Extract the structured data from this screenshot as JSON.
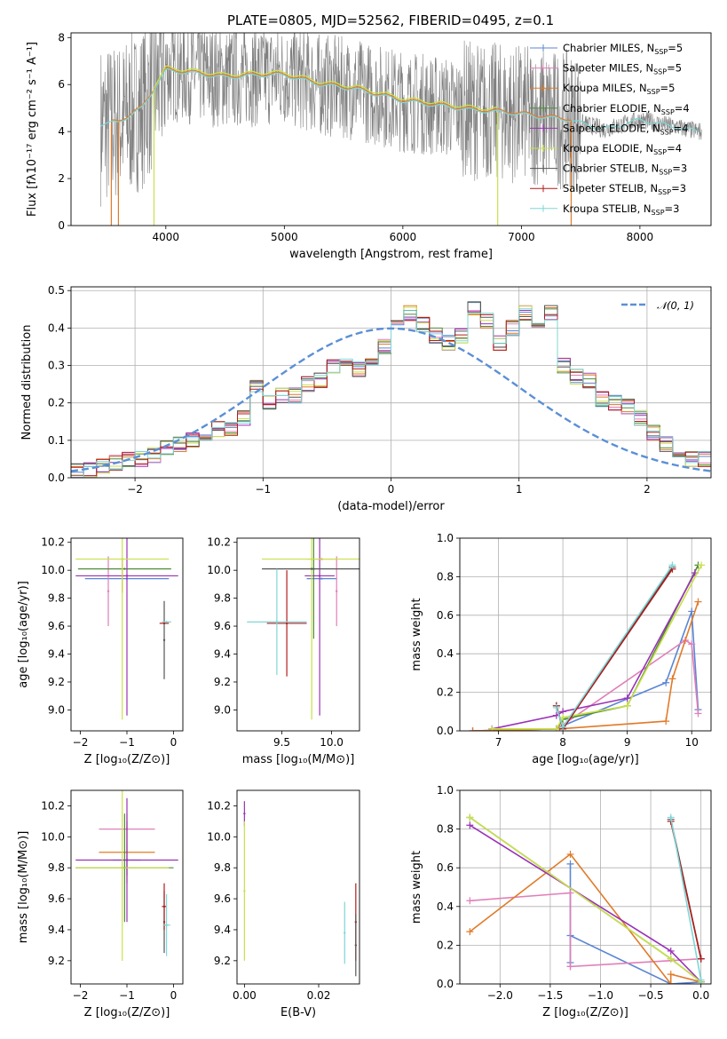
{
  "figure_title": "PLATE=0805, MJD=52562, FIBERID=0495, z=0.1",
  "colors": {
    "Chabrier MILES": "#5b86d4",
    "Salpeter MILES": "#e07fb8",
    "Kroupa MILES": "#e07b2a",
    "Chabrier ELODIE": "#4f8b3a",
    "Salpeter ELODIE": "#9a32b6",
    "Kroupa ELODIE": "#c9e04a",
    "Chabrier STELIB": "#555555",
    "Salpeter STELIB": "#b01c1c",
    "Kroupa STELIB": "#7fd6d6",
    "normal": "#5b8fd6",
    "data": "#808080",
    "grid": "#b0b0b0"
  },
  "chart_data": [
    {
      "id": "spectrum",
      "type": "line",
      "title": "PLATE=0805, MJD=52562, FIBERID=0495, z=0.1",
      "xlabel": "wavelength [Angstrom, rest frame]",
      "ylabel": "Flux [fλ10⁻¹⁷ erg cm⁻² s⁻¹ A⁻¹]",
      "xlim": [
        3200,
        8600
      ],
      "ylim": [
        0,
        8.2
      ],
      "xticks": [
        4000,
        5000,
        6000,
        7000,
        8000
      ],
      "yticks": [
        0,
        2,
        4,
        6,
        8
      ],
      "legend": [
        "Chabrier MILES, N_SSP=5",
        "Salpeter MILES, N_SSP=5",
        "Kroupa MILES, N_SSP=5",
        "Chabrier ELODIE, N_SSP=4",
        "Salpeter ELODIE, N_SSP=4",
        "Kroupa ELODIE, N_SSP=4",
        "Chabrier STELIB, N_SSP=3",
        "Salpeter STELIB, N_SSP=3",
        "Kroupa STELIB, N_SSP=3"
      ],
      "model_continuum": {
        "x": [
          3450,
          3600,
          3800,
          4000,
          4200,
          4500,
          4800,
          5000,
          5300,
          5600,
          6000,
          6300,
          6600,
          6900,
          7200,
          7400,
          7700,
          8000,
          8300,
          8500
        ],
        "y": [
          4.3,
          4.4,
          5.0,
          6.6,
          6.5,
          6.3,
          6.4,
          6.4,
          6.0,
          5.8,
          5.3,
          5.1,
          4.9,
          4.8,
          4.6,
          4.5,
          4.1,
          4.5,
          4.2,
          4.0
        ]
      },
      "models": [
        {
          "name": "MILES",
          "x_range": [
            3540,
            7420
          ]
        },
        {
          "name": "ELODIE",
          "x_range": [
            3900,
            6800
          ]
        },
        {
          "name": "STELIB",
          "x_range": [
            3450,
            8500
          ]
        }
      ]
    },
    {
      "id": "residuals",
      "type": "line",
      "xlabel": "(data-model)/error",
      "ylabel": "Normed distribution",
      "xlim": [
        -2.5,
        2.5
      ],
      "ylim": [
        0,
        0.51
      ],
      "xticks": [
        -2,
        -1,
        0,
        1,
        2
      ],
      "xtick_labels": [
        "−2",
        "−1",
        "0",
        "1",
        "2"
      ],
      "yticks": [
        0,
        0.1,
        0.2,
        0.3,
        0.4,
        0.5
      ],
      "ytick_labels": [
        "0.0",
        "0.1",
        "0.2",
        "0.3",
        "0.4",
        "0.5"
      ],
      "grid": true,
      "legend": "𝒩(0, 1)",
      "legend_position": "top-right",
      "bin_width": 0.1,
      "bin_edges_start": -2.5,
      "histogram_values": [
        0.02,
        0.02,
        0.03,
        0.04,
        0.05,
        0.05,
        0.06,
        0.08,
        0.09,
        0.1,
        0.12,
        0.13,
        0.13,
        0.16,
        0.24,
        0.2,
        0.22,
        0.22,
        0.25,
        0.26,
        0.3,
        0.32,
        0.29,
        0.31,
        0.35,
        0.4,
        0.44,
        0.41,
        0.38,
        0.36,
        0.38,
        0.45,
        0.42,
        0.36,
        0.4,
        0.44,
        0.4,
        0.44,
        0.3,
        0.27,
        0.26,
        0.21,
        0.2,
        0.19,
        0.16,
        0.12,
        0.09,
        0.07,
        0.05,
        0.05,
        0.04
      ]
    },
    {
      "id": "age-vs-Z",
      "type": "scatter",
      "xlabel": "Z [log₁₀(Z/Z⊙)]",
      "ylabel": "age  [log₁₀(age/yr)]",
      "xlim": [
        -2.2,
        0.2
      ],
      "ylim": [
        8.85,
        10.23
      ],
      "xticks": [
        -2,
        -1,
        0
      ],
      "xtick_labels": [
        "−2",
        "−1",
        "0"
      ],
      "yticks": [
        9.0,
        9.2,
        9.4,
        9.6,
        9.8,
        10.0,
        10.2
      ],
      "ytick_labels": [
        "9.0",
        "9.2",
        "9.4",
        "9.6",
        "9.8",
        "10.0",
        "10.2"
      ],
      "points": [
        {
          "model": "Chabrier MILES",
          "x": -1.0,
          "xerr": 0.9,
          "y": 9.94,
          "yerr": 0.0
        },
        {
          "model": "Salpeter MILES",
          "x": -1.4,
          "xerr": 0.0,
          "y": 9.85,
          "yerr": 0.25
        },
        {
          "model": "Kroupa MILES",
          "x": -1.1,
          "xerr": 0.0,
          "y": 9.96,
          "yerr": 0.12
        },
        {
          "model": "Chabrier ELODIE",
          "x": -1.05,
          "xerr": 1.0,
          "y": 10.01,
          "yerr": 0.0
        },
        {
          "model": "Salpeter ELODIE",
          "x": -1.0,
          "xerr": 1.1,
          "y": 9.96,
          "yerr": 1.0
        },
        {
          "model": "Kroupa ELODIE",
          "x": -1.1,
          "xerr": 1.0,
          "y": 10.08,
          "yerr": 1.15
        },
        {
          "model": "Chabrier STELIB",
          "x": -0.2,
          "xerr": 0.0,
          "y": 9.5,
          "yerr": 0.28
        },
        {
          "model": "Salpeter STELIB",
          "x": -0.2,
          "xerr": 0.1,
          "y": 9.62,
          "yerr": 0.0
        },
        {
          "model": "Kroupa STELIB",
          "x": -0.15,
          "xerr": 0.1,
          "y": 9.63,
          "yerr": 0.0
        }
      ]
    },
    {
      "id": "age-vs-mass",
      "type": "scatter",
      "xlabel": "mass [log₁₀(M/M⊙)]",
      "xlim": [
        9.05,
        10.28
      ],
      "ylim": [
        8.85,
        10.23
      ],
      "xticks": [
        9.5,
        10.0
      ],
      "xtick_labels": [
        "9.5",
        "10.0"
      ],
      "yticks": [
        9.0,
        9.2,
        9.4,
        9.6,
        9.8,
        10.0,
        10.2
      ],
      "ytick_labels": [
        "9.0",
        "9.2",
        "9.4",
        "9.6",
        "9.8",
        "10.0",
        "10.2"
      ],
      "points": [
        {
          "model": "Chabrier MILES",
          "x": 9.9,
          "xerr": 0.15,
          "y": 9.94,
          "yerr": 0.0
        },
        {
          "model": "Salpeter MILES",
          "x": 10.05,
          "xerr": 0.0,
          "y": 9.85,
          "yerr": 0.25
        },
        {
          "model": "Kroupa MILES",
          "x": 9.9,
          "xerr": 0.15,
          "y": 10.08,
          "yerr": 0.0
        },
        {
          "model": "Chabrier ELODIE",
          "x": 9.82,
          "xerr": 0.0,
          "y": 10.01,
          "yerr": 0.5
        },
        {
          "model": "Salpeter ELODIE",
          "x": 9.88,
          "xerr": 0.15,
          "y": 9.96,
          "yerr": 1.0
        },
        {
          "model": "Kroupa ELODIE",
          "x": 9.8,
          "xerr": 0.5,
          "y": 10.08,
          "yerr": 1.15
        },
        {
          "model": "Chabrier STELIB",
          "x": 9.8,
          "xerr": 0.5,
          "y": 10.01,
          "yerr": 0.0
        },
        {
          "model": "Salpeter STELIB",
          "x": 9.55,
          "xerr": 0.2,
          "y": 9.62,
          "yerr": 0.38
        },
        {
          "model": "Kroupa STELIB",
          "x": 9.45,
          "xerr": 0.3,
          "y": 9.63,
          "yerr": 0.38
        }
      ]
    },
    {
      "id": "massweight-vs-age",
      "type": "line",
      "xlabel": "age  [log₁₀(age/yr)]",
      "ylabel": "mass weight",
      "xlim": [
        6.4,
        10.3
      ],
      "ylim": [
        0,
        1.0
      ],
      "xticks": [
        7,
        8,
        9,
        10
      ],
      "xtick_labels": [
        "7",
        "8",
        "9",
        "10"
      ],
      "yticks": [
        0,
        0.2,
        0.4,
        0.6,
        0.8,
        1.0
      ],
      "ytick_labels": [
        "0.0",
        "0.2",
        "0.4",
        "0.6",
        "0.8",
        "1.0"
      ],
      "grid": true,
      "series": [
        {
          "model": "Chabrier MILES",
          "x": [
            6.6,
            7.9,
            7.95,
            9.6,
            10.0,
            10.1
          ],
          "y": [
            0.0,
            0.01,
            0.02,
            0.25,
            0.62,
            0.11
          ]
        },
        {
          "model": "Salpeter MILES",
          "x": [
            6.6,
            7.9,
            7.95,
            9.9,
            10.0,
            10.1
          ],
          "y": [
            0.0,
            0.01,
            0.02,
            0.47,
            0.45,
            0.09
          ]
        },
        {
          "model": "Kroupa MILES",
          "x": [
            6.6,
            7.9,
            7.95,
            9.6,
            9.7,
            10.1
          ],
          "y": [
            0.0,
            0.01,
            0.01,
            0.05,
            0.27,
            0.67
          ]
        },
        {
          "model": "Chabrier ELODIE",
          "x": [
            6.9,
            7.9,
            8.0,
            9.0,
            10.1
          ],
          "y": [
            0.01,
            0.01,
            0.06,
            0.13,
            0.86
          ]
        },
        {
          "model": "Salpeter ELODIE",
          "x": [
            6.9,
            7.9,
            8.0,
            9.0,
            10.05
          ],
          "y": [
            0.01,
            0.08,
            0.1,
            0.17,
            0.82
          ]
        },
        {
          "model": "Kroupa ELODIE",
          "x": [
            6.9,
            7.9,
            8.0,
            9.0,
            10.15
          ],
          "y": [
            0.01,
            0.01,
            0.07,
            0.13,
            0.86
          ]
        },
        {
          "model": "Chabrier STELIB",
          "x": [
            7.9,
            8.0,
            9.7
          ],
          "y": [
            0.13,
            0.01,
            0.85
          ]
        },
        {
          "model": "Salpeter STELIB",
          "x": [
            7.9,
            8.0,
            9.7
          ],
          "y": [
            0.13,
            0.01,
            0.84
          ]
        },
        {
          "model": "Kroupa STELIB",
          "x": [
            7.9,
            8.0,
            9.7
          ],
          "y": [
            0.12,
            0.02,
            0.86
          ]
        }
      ]
    },
    {
      "id": "mass-vs-Z",
      "type": "scatter",
      "xlabel": "Z [log₁₀(Z/Z⊙)]",
      "ylabel": "mass [log₁₀(M/M⊙)]",
      "xlim": [
        -2.2,
        0.2
      ],
      "ylim": [
        9.05,
        10.3
      ],
      "xticks": [
        -2,
        -1,
        0
      ],
      "xtick_labels": [
        "−2",
        "−1",
        "0"
      ],
      "yticks": [
        9.2,
        9.4,
        9.6,
        9.8,
        10.0,
        10.2
      ],
      "ytick_labels": [
        "9.2",
        "9.4",
        "9.6",
        "9.8",
        "10.0",
        "10.2"
      ],
      "points": [
        {
          "model": "Chabrier MILES",
          "x": -1.0,
          "xerr": 0.3,
          "y": 9.85,
          "yerr": 0.1
        },
        {
          "model": "Salpeter MILES",
          "x": -1.0,
          "xerr": 0.6,
          "y": 10.05,
          "yerr": 0.1
        },
        {
          "model": "Kroupa MILES",
          "x": -1.0,
          "xerr": 0.6,
          "y": 9.9,
          "yerr": 0.2
        },
        {
          "model": "Chabrier ELODIE",
          "x": -1.05,
          "xerr": 1.05,
          "y": 9.8,
          "yerr": 0.35
        },
        {
          "model": "Salpeter ELODIE",
          "x": -1.0,
          "xerr": 1.1,
          "y": 9.85,
          "yerr": 0.4
        },
        {
          "model": "Kroupa ELODIE",
          "x": -1.1,
          "xerr": 1.0,
          "y": 9.8,
          "yerr": 0.6
        },
        {
          "model": "Chabrier STELIB",
          "x": -0.2,
          "xerr": 0.0,
          "y": 9.45,
          "yerr": 0.2
        },
        {
          "model": "Salpeter STELIB",
          "x": -0.2,
          "xerr": 0.05,
          "y": 9.55,
          "yerr": 0.15
        },
        {
          "model": "Kroupa STELIB",
          "x": -0.15,
          "xerr": 0.08,
          "y": 9.43,
          "yerr": 0.2
        }
      ]
    },
    {
      "id": "mass-vs-EBV",
      "type": "scatter",
      "xlabel": "E(B-V)",
      "xlim": [
        -0.002,
        0.031
      ],
      "ylim": [
        9.05,
        10.3
      ],
      "xticks": [
        0.0,
        0.02
      ],
      "xtick_labels": [
        "0.00",
        "0.02"
      ],
      "yticks": [
        9.2,
        9.4,
        9.6,
        9.8,
        10.0,
        10.2
      ],
      "ytick_labels": [
        "9.2",
        "9.4",
        "9.6",
        "9.8",
        "10.0",
        "10.2"
      ],
      "points": [
        {
          "model": "Salpeter ELODIE",
          "x": 0.0,
          "xerr": 0.0,
          "y": 10.15,
          "yerr": 0.08
        },
        {
          "model": "Kroupa ELODIE",
          "x": 0.0,
          "xerr": 0.0,
          "y": 9.65,
          "yerr": 0.45
        },
        {
          "model": "Kroupa STELIB",
          "x": 0.027,
          "xerr": 0.0,
          "y": 9.38,
          "yerr": 0.2
        },
        {
          "model": "Salpeter STELIB",
          "x": 0.03,
          "xerr": 0.0,
          "y": 9.45,
          "yerr": 0.25
        },
        {
          "model": "Chabrier STELIB",
          "x": 0.03,
          "xerr": 0.0,
          "y": 9.3,
          "yerr": 0.2
        }
      ]
    },
    {
      "id": "massweight-vs-Z",
      "type": "line",
      "xlabel": "Z [log₁₀(Z/Z⊙)]",
      "ylabel": "mass weight",
      "xlim": [
        -2.4,
        0.1
      ],
      "ylim": [
        0,
        1.0
      ],
      "xticks": [
        -2.0,
        -1.5,
        -1.0,
        -0.5,
        0.0
      ],
      "xtick_labels": [
        "−2.0",
        "−1.5",
        "−1.0",
        "−0.5",
        "0.0"
      ],
      "yticks": [
        0,
        0.2,
        0.4,
        0.6,
        0.8,
        1.0
      ],
      "ytick_labels": [
        "0.0",
        "0.2",
        "0.4",
        "0.6",
        "0.8",
        "1.0"
      ],
      "grid": true,
      "series": [
        {
          "model": "Chabrier MILES",
          "x": [
            -1.3,
            -1.3,
            -1.3,
            -0.3,
            0.0
          ],
          "y": [
            0.62,
            0.11,
            0.25,
            0.0,
            0.01
          ]
        },
        {
          "model": "Salpeter MILES",
          "x": [
            -2.3,
            -1.3,
            -1.3,
            -1.3,
            0.0
          ],
          "y": [
            0.43,
            0.47,
            0.09,
            0.09,
            0.13
          ]
        },
        {
          "model": "Kroupa MILES",
          "x": [
            -2.3,
            -1.3,
            -0.3,
            -0.3,
            0.0
          ],
          "y": [
            0.27,
            0.67,
            0.0,
            0.05,
            0.01
          ]
        },
        {
          "model": "Chabrier ELODIE",
          "x": [
            -2.3,
            -0.3,
            0.0
          ],
          "y": [
            0.86,
            0.13,
            0.01
          ]
        },
        {
          "model": "Salpeter ELODIE",
          "x": [
            -2.3,
            -0.3,
            0.0
          ],
          "y": [
            0.82,
            0.17,
            0.01
          ]
        },
        {
          "model": "Kroupa ELODIE",
          "x": [
            -2.3,
            -0.3,
            0.0
          ],
          "y": [
            0.86,
            0.13,
            0.01
          ]
        },
        {
          "model": "Chabrier STELIB",
          "x": [
            -0.3,
            0.0
          ],
          "y": [
            0.85,
            0.13
          ]
        },
        {
          "model": "Salpeter STELIB",
          "x": [
            -0.3,
            0.0
          ],
          "y": [
            0.84,
            0.13
          ]
        },
        {
          "model": "Kroupa STELIB",
          "x": [
            -0.3,
            0.0
          ],
          "y": [
            0.86,
            0.02
          ]
        }
      ]
    }
  ]
}
